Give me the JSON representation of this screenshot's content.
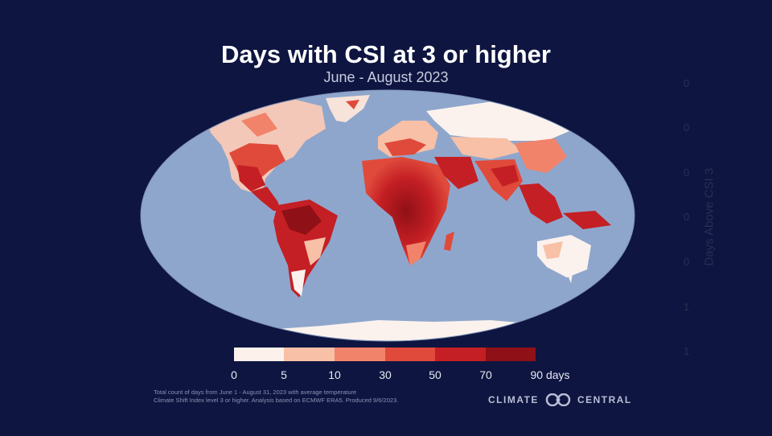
{
  "title": "Days with CSI at 3 or higher",
  "subtitle": "June - August 2023",
  "axis_label_ghost": "Days Above CSI 3",
  "ghost_ticks": [
    "0",
    "0",
    "0",
    "0",
    "0",
    "1",
    "1"
  ],
  "legend": {
    "labels": [
      "0",
      "5",
      "10",
      "30",
      "50",
      "70",
      "90 days"
    ],
    "colors": [
      "#fdf1ec",
      "#f7c0a7",
      "#f1836a",
      "#e04a3b",
      "#c41f24",
      "#8f1016"
    ]
  },
  "footnote": [
    "Total count of days from June 1 - August 31, 2023 with average temperature",
    "Climate Shift Index level 3 or higher. Analysis based on ECMWF ERA5. Produced 9/6/2023."
  ],
  "brand": {
    "left": "CLIMATE",
    "right": "CENTRAL",
    "logo": "climate-central-logo-icon"
  },
  "colors": {
    "background": "#0e1540",
    "ocean": "#8fa6cc",
    "land_low": "#fbf2ee"
  }
}
